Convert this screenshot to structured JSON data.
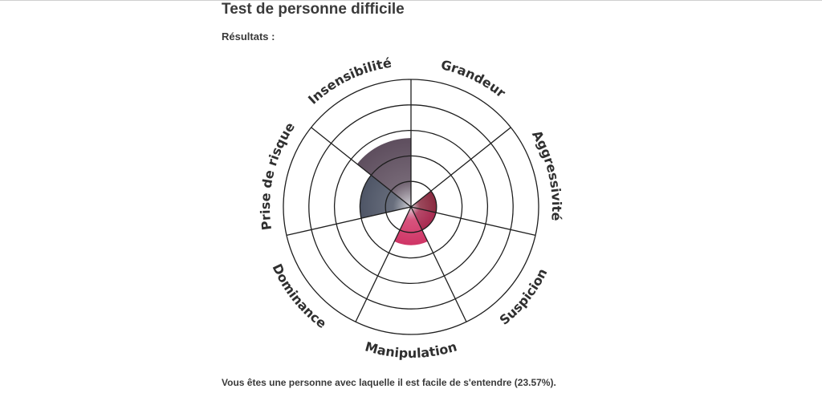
{
  "page": {
    "title": "Test de personne difficile",
    "results_label": "Résultats :",
    "summary": "Vous êtes une personne avec laquelle il est facile de s'entendre (23.57%)."
  },
  "chart_data": {
    "type": "polar-area",
    "title": "",
    "categories": [
      "Grandeur",
      "Aggressivité",
      "Suspicion",
      "Manipulation",
      "Dominance",
      "Prise de risque",
      "Insensibilité"
    ],
    "levels": 5,
    "values": [
      0,
      1,
      1,
      1.5,
      0,
      2,
      2.7
    ],
    "max": 5,
    "colors": {
      "Grandeur": "#7a3a4a",
      "Aggressivité": "#8a2a40",
      "Suspicion": "#a8294f",
      "Manipulation": "#d03566",
      "Dominance": "#5a5a66",
      "Prise de risque": "#4e5566",
      "Insensibilité": "#5e4e5e"
    }
  }
}
